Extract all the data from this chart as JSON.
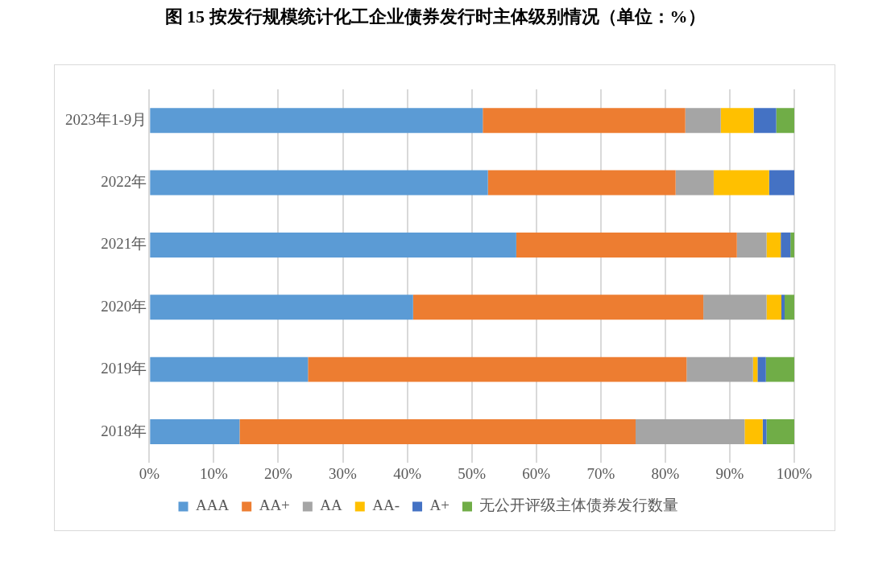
{
  "chart_data": {
    "type": "bar",
    "orientation": "horizontal",
    "stacked": true,
    "title": "图 15  按发行规模统计化工企业债券发行时主体级别情况（单位：%）",
    "categories": [
      "2023年1-9月",
      "2022年",
      "2021年",
      "2020年",
      "2019年",
      "2018年"
    ],
    "series": [
      {
        "name": "AAA",
        "color": "#5b9bd5",
        "values": [
          51.7,
          52.5,
          56.9,
          40.9,
          24.6,
          14.0
        ]
      },
      {
        "name": "AA+",
        "color": "#ed7d31",
        "values": [
          31.4,
          29.1,
          34.2,
          45.0,
          58.7,
          61.4
        ]
      },
      {
        "name": "AA",
        "color": "#a5a5a5",
        "values": [
          5.5,
          5.9,
          4.6,
          9.8,
          10.3,
          16.9
        ]
      },
      {
        "name": "AA-",
        "color": "#ffc000",
        "values": [
          5.1,
          8.6,
          2.2,
          2.3,
          0.7,
          2.8
        ]
      },
      {
        "name": "A+",
        "color": "#4472c4",
        "values": [
          3.5,
          3.9,
          1.5,
          0.5,
          1.3,
          0.6
        ]
      },
      {
        "name": "无公开评级主体债券发行数量",
        "color": "#70ad47",
        "values": [
          2.8,
          0,
          0.6,
          1.5,
          4.4,
          4.3
        ]
      }
    ],
    "xlim": [
      0,
      100
    ],
    "xticks": [
      {
        "value": 0,
        "label": "0%"
      },
      {
        "value": 10,
        "label": "10%"
      },
      {
        "value": 20,
        "label": "20%"
      },
      {
        "value": 30,
        "label": "30%"
      },
      {
        "value": 40,
        "label": "40%"
      },
      {
        "value": 50,
        "label": "50%"
      },
      {
        "value": 60,
        "label": "60%"
      },
      {
        "value": 70,
        "label": "70%"
      },
      {
        "value": 80,
        "label": "80%"
      },
      {
        "value": 90,
        "label": "90%"
      },
      {
        "value": 100,
        "label": "100%"
      }
    ],
    "grid": "x",
    "legend": "bottom"
  }
}
